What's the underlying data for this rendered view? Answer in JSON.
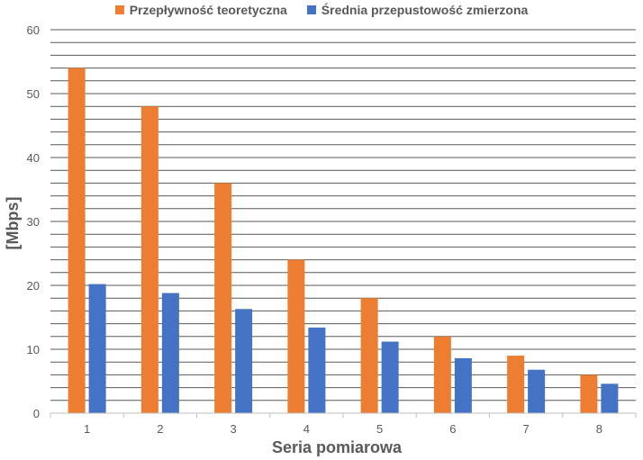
{
  "chart_data": {
    "type": "bar",
    "title": "",
    "xlabel": "Seria pomiarowa",
    "ylabel": "[Mbps]",
    "categories": [
      "1",
      "2",
      "3",
      "4",
      "5",
      "6",
      "7",
      "8"
    ],
    "ylim": [
      0,
      60
    ],
    "yticks": [
      "0",
      "10",
      "20",
      "30",
      "40",
      "50",
      "60"
    ],
    "grid": true,
    "legend_position": "top",
    "series": [
      {
        "name": "Przepływność teoretyczna",
        "color": "#ED7D31",
        "values": [
          54,
          48,
          36,
          24,
          18,
          12,
          9,
          6
        ]
      },
      {
        "name": "Średnia przepustowość zmierzona",
        "color": "#4472C4",
        "values": [
          20.2,
          18.8,
          16.3,
          13.4,
          11.2,
          8.6,
          6.8,
          4.6
        ]
      }
    ]
  }
}
